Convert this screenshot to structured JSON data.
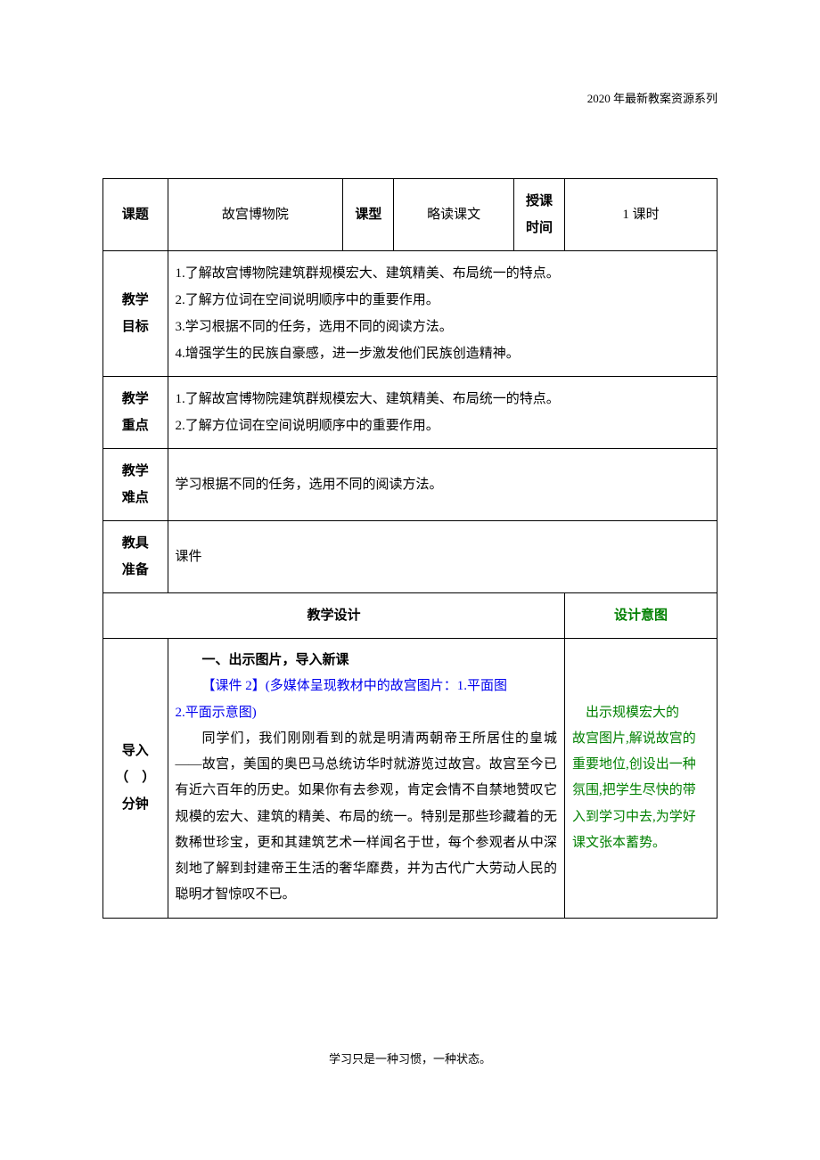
{
  "header": {
    "text": "2020 年最新教案资源系列"
  },
  "row1": {
    "label_topic": "课题",
    "topic": "故宫博物院",
    "label_type": "课型",
    "type": "略读课文",
    "label_time": "授课\n时间",
    "time": "1 课时"
  },
  "row_goal": {
    "label": "教学\n目标",
    "line1": "1.了解故宫博物院建筑群规模宏大、建筑精美、布局统一的特点。",
    "line2": "2.了解方位词在空间说明顺序中的重要作用。",
    "line3": "3.学习根据不同的任务，选用不同的阅读方法。",
    "line4": "4.增强学生的民族自豪感，进一步激发他们民族创造精神。"
  },
  "row_emphasis": {
    "label": "教学\n重点",
    "line1": "1.了解故宫博物院建筑群规模宏大、建筑精美、布局统一的特点。",
    "line2": "2.了解方位词在空间说明顺序中的重要作用。"
  },
  "row_difficulty": {
    "label": "教学\n难点",
    "content": "学习根据不同的任务，选用不同的阅读方法。"
  },
  "row_tools": {
    "label": "教具\n准备",
    "content": "课件"
  },
  "row_design": {
    "design_label": "教学设计",
    "intent_label": "设计意图"
  },
  "row_intro": {
    "label": "导入\n（　）\n分钟",
    "body": {
      "title": "一、出示图片，导入新课",
      "blue1": "【课件 2】(多媒体呈现教材中的故宫图片：1.平面图",
      "blue2": "2.平面示意图)",
      "para": "同学们，我们刚刚看到的就是明清两朝帝王所居住的皇城——故宫，美国的奥巴马总统访华时就游览过故宫。故宫至今已有近六百年的历史。如果你有去参观，肯定会情不自禁地赞叹它规模的宏大、建筑的精美、布局的统一。特别是那些珍藏着的无数稀世珍宝，更和其建筑艺术一样闻名于世，每个参观者从中深刻地了解到封建帝王生活的奢华靡费，并为古代广大劳动人民的聪明才智惊叹不已。"
    },
    "intent": {
      "p1a": "出示规模宏大的",
      "p2": "故宫图片,解说故宫的",
      "p3": "重要地位,创设出一种",
      "p4": "氛围,把学生尽快的带",
      "p5": "入到学习中去,为学好",
      "p6": "课文张本蓄势。"
    }
  },
  "footer": {
    "text": "学习只是一种习惯，一种状态。"
  },
  "colors": {
    "blue": "#0000ee",
    "green": "#008000",
    "black": "#000000"
  }
}
